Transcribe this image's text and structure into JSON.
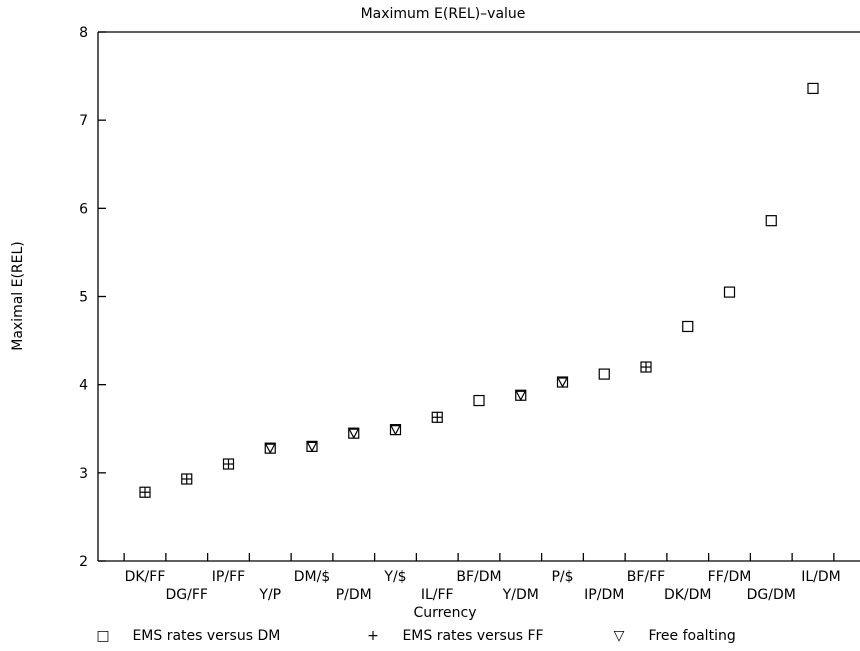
{
  "chart_data": {
    "type": "scatter",
    "title": "Maximum E(REL)–value",
    "xlabel": "Currency",
    "ylabel": "Maximal E(REL)",
    "ylim": [
      2,
      8
    ],
    "yticks": [
      "2",
      "3",
      "4",
      "5",
      "6",
      "7",
      "8"
    ],
    "grid": false,
    "legend_position": "bottom",
    "categories": [
      "DK/FF",
      "DG/FF",
      "IP/FF",
      "Y/P",
      "DM/$",
      "P/DM",
      "Y/$",
      "IL/FF",
      "BF/DM",
      "Y/DM",
      "P/$",
      "IP/DM",
      "BF/FF",
      "DK/DM",
      "FF/DM",
      "DG/DM",
      "IL/DM"
    ],
    "values": [
      2.78,
      2.93,
      3.1,
      3.28,
      3.3,
      3.45,
      3.49,
      3.63,
      3.82,
      3.88,
      4.03,
      4.12,
      4.2,
      4.66,
      5.05,
      5.86,
      7.36
    ],
    "groups": [
      "FF",
      "FF",
      "FF",
      "Free",
      "Free",
      "Free",
      "Free",
      "FF",
      "DM",
      "Free",
      "Free",
      "DM",
      "FF",
      "DM",
      "DM",
      "DM",
      "DM"
    ],
    "series": [
      {
        "key": "DM",
        "name": "EMS rates versus DM",
        "symbol": "□"
      },
      {
        "key": "FF",
        "name": "EMS rates versus FF",
        "symbol": "+"
      },
      {
        "key": "Free",
        "name": "Free foalting",
        "symbol": "▽"
      }
    ]
  }
}
